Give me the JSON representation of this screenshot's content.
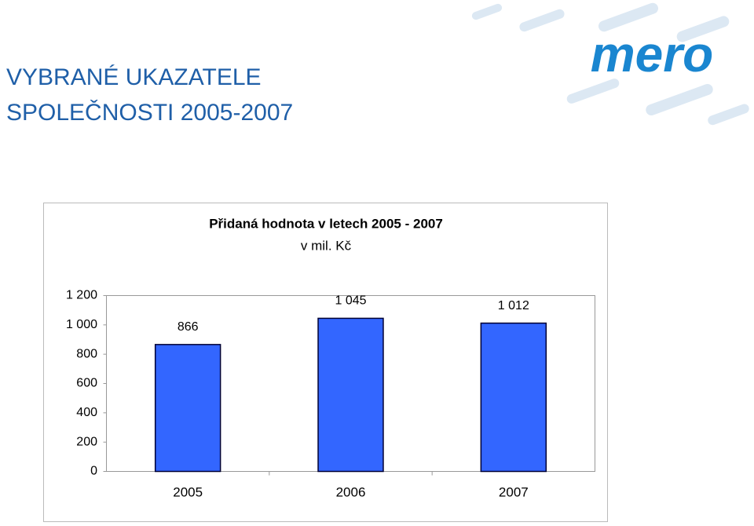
{
  "header": {
    "title_lines": [
      "VYBRANÉ UKAZATELE",
      "SPOLEČNOSTI 2005-2007"
    ],
    "logo": "mero"
  },
  "chart_data": {
    "type": "bar",
    "title": "Přidaná hodnota v letech 2005 - 2007",
    "subtitle": "v mil. Kč",
    "categories": [
      "2005",
      "2006",
      "2007"
    ],
    "values": [
      866,
      1045,
      1012
    ],
    "value_labels": [
      "866",
      "1 045",
      "1 012"
    ],
    "color": "#3366ff",
    "ylim": [
      0,
      1200
    ],
    "yticks": [
      0,
      200,
      400,
      600,
      800,
      {
        "value": 1000,
        "label": "1 000"
      },
      {
        "value": 1200,
        "label": "1 200"
      }
    ],
    "grid": false
  }
}
